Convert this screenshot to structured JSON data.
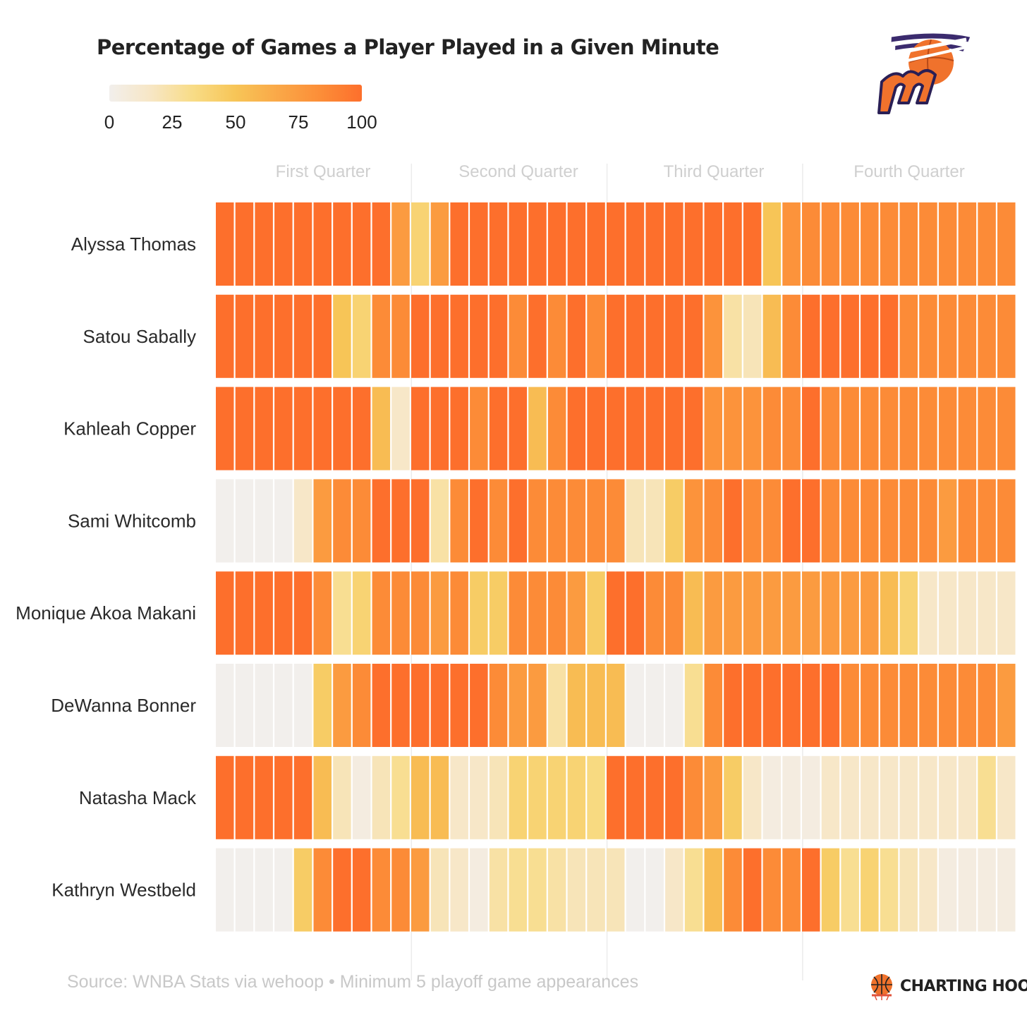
{
  "title": "Percentage of Games a Player Played in a Given Minute",
  "legend": {
    "ticks": [
      "0",
      "25",
      "50",
      "75",
      "100"
    ],
    "colors": [
      "#f2efec",
      "#f7e6c4",
      "#f8dc86",
      "#f7c557",
      "#faa848",
      "#fc8e38",
      "#fd6f2c"
    ]
  },
  "quarters": [
    "First Quarter",
    "Second Quarter",
    "Third Quarter",
    "Fourth Quarter"
  ],
  "chart_data": {
    "type": "heatmap",
    "title": "Percentage of Games a Player Played in a Given Minute",
    "x": "minute of game (1-41)",
    "value_range": [
      0,
      100
    ],
    "players": [
      "Alyssa Thomas",
      "Satou Sabally",
      "Kahleah Copper",
      "Sami Whitcomb",
      "Monique Akoa Makani",
      "DeWanna Bonner",
      "Natasha Mack",
      "Kathryn Westbeld"
    ],
    "values": [
      [
        100,
        100,
        100,
        100,
        100,
        100,
        100,
        100,
        100,
        75,
        40,
        75,
        100,
        100,
        100,
        100,
        100,
        100,
        100,
        100,
        100,
        100,
        100,
        100,
        100,
        100,
        100,
        100,
        50,
        80,
        85,
        85,
        85,
        85,
        85,
        85,
        85,
        85,
        85,
        85,
        85
      ],
      [
        100,
        100,
        100,
        100,
        100,
        100,
        50,
        40,
        85,
        85,
        100,
        100,
        100,
        100,
        100,
        85,
        100,
        85,
        100,
        85,
        100,
        100,
        100,
        100,
        100,
        80,
        25,
        20,
        55,
        85,
        100,
        100,
        100,
        100,
        100,
        85,
        85,
        85,
        85,
        85,
        85
      ],
      [
        100,
        100,
        100,
        100,
        100,
        100,
        100,
        100,
        55,
        15,
        100,
        100,
        100,
        85,
        100,
        100,
        55,
        85,
        100,
        100,
        100,
        100,
        100,
        100,
        100,
        80,
        80,
        80,
        85,
        85,
        100,
        85,
        85,
        85,
        85,
        85,
        85,
        85,
        85,
        85,
        85
      ],
      [
        0,
        0,
        0,
        0,
        15,
        75,
        85,
        85,
        100,
        100,
        100,
        25,
        85,
        100,
        85,
        100,
        85,
        85,
        85,
        85,
        85,
        20,
        20,
        45,
        80,
        85,
        100,
        85,
        85,
        100,
        100,
        85,
        85,
        85,
        85,
        85,
        85,
        75,
        85,
        85,
        85
      ],
      [
        100,
        100,
        100,
        100,
        100,
        85,
        30,
        40,
        85,
        85,
        85,
        75,
        85,
        45,
        45,
        85,
        85,
        85,
        75,
        45,
        100,
        100,
        85,
        85,
        55,
        75,
        75,
        75,
        75,
        75,
        75,
        75,
        75,
        75,
        55,
        40,
        15,
        15,
        15,
        15,
        15
      ],
      [
        0,
        0,
        0,
        0,
        0,
        45,
        75,
        85,
        100,
        100,
        100,
        100,
        100,
        100,
        85,
        75,
        75,
        25,
        55,
        55,
        55,
        0,
        0,
        0,
        30,
        85,
        100,
        100,
        100,
        100,
        100,
        100,
        85,
        85,
        85,
        85,
        85,
        85,
        85,
        85,
        75
      ],
      [
        100,
        100,
        100,
        100,
        100,
        55,
        20,
        5,
        20,
        30,
        55,
        55,
        15,
        15,
        20,
        40,
        40,
        40,
        40,
        35,
        100,
        100,
        100,
        100,
        85,
        75,
        45,
        15,
        5,
        5,
        5,
        15,
        15,
        15,
        15,
        15,
        15,
        15,
        15,
        30,
        15
      ],
      [
        0,
        0,
        0,
        0,
        45,
        85,
        100,
        100,
        85,
        85,
        75,
        20,
        15,
        5,
        25,
        30,
        30,
        25,
        20,
        20,
        20,
        0,
        0,
        15,
        30,
        55,
        85,
        100,
        85,
        85,
        100,
        45,
        30,
        40,
        30,
        20,
        15,
        5,
        5,
        5,
        5
      ]
    ],
    "quarter_boundaries_after_minute": [
      10,
      20,
      30
    ]
  },
  "source": "Source: WNBA Stats via wehoop • Minimum 5 playoff game appearances",
  "brand": "CHARTING HOOPS",
  "logo": {
    "letter": "m"
  }
}
